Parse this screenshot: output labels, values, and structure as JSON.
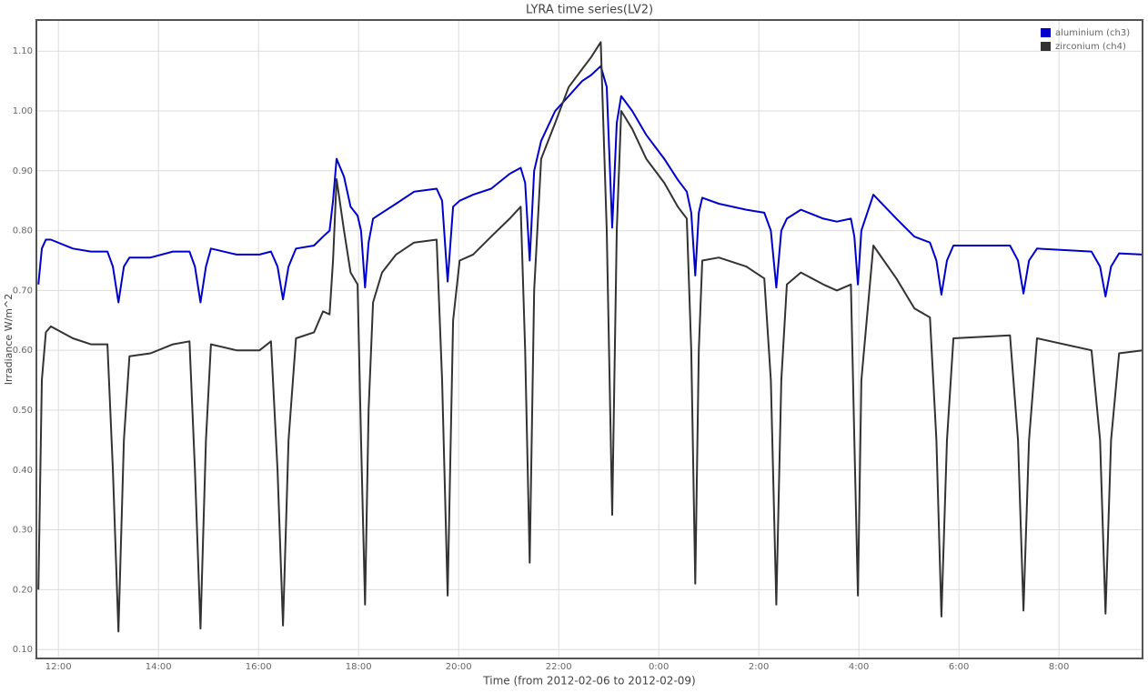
{
  "chart_data": {
    "type": "line",
    "title": "LYRA time series(LV2)",
    "x_label": "Time (from 2012-02-06 to 2012-02-09)",
    "y_label": "Irradiance W/m^2",
    "x": [
      11.6,
      11.67,
      11.75,
      11.85,
      12.29,
      12.65,
      12.98,
      13.09,
      13.2,
      13.31,
      13.42,
      13.84,
      14.29,
      14.62,
      14.73,
      14.84,
      14.95,
      15.05,
      15.56,
      16.02,
      16.25,
      16.38,
      16.49,
      16.6,
      16.75,
      17.11,
      17.29,
      17.42,
      17.49,
      17.56,
      17.71,
      17.84,
      17.98,
      18.05,
      18.13,
      18.2,
      18.29,
      18.47,
      18.75,
      19.11,
      19.56,
      19.67,
      19.78,
      19.89,
      20.02,
      20.29,
      20.65,
      21.02,
      21.24,
      21.33,
      21.42,
      21.51,
      21.65,
      21.93,
      22.2,
      22.47,
      22.65,
      22.84,
      22.96,
      23.07,
      23.16,
      23.25,
      23.47,
      23.75,
      24.11,
      24.38,
      24.56,
      24.65,
      24.73,
      24.8,
      24.87,
      25.2,
      25.75,
      26.11,
      26.24,
      26.35,
      26.45,
      26.56,
      26.84,
      27.29,
      27.56,
      27.84,
      27.91,
      27.98,
      28.05,
      28.29,
      28.75,
      29.11,
      29.42,
      29.55,
      29.65,
      29.76,
      29.89,
      31.02,
      31.18,
      31.29,
      31.4,
      31.56,
      32.65,
      32.82,
      32.93,
      33.04,
      33.2,
      33.67
    ],
    "series": [
      {
        "name": "aluminium (ch3)",
        "color": "#0000cc",
        "values": [
          0.71,
          0.77,
          0.785,
          0.785,
          0.77,
          0.765,
          0.765,
          0.74,
          0.68,
          0.74,
          0.755,
          0.755,
          0.765,
          0.765,
          0.74,
          0.68,
          0.74,
          0.77,
          0.76,
          0.76,
          0.765,
          0.74,
          0.685,
          0.74,
          0.77,
          0.775,
          0.79,
          0.8,
          0.85,
          0.92,
          0.89,
          0.84,
          0.825,
          0.8,
          0.705,
          0.78,
          0.82,
          0.83,
          0.845,
          0.865,
          0.87,
          0.85,
          0.715,
          0.84,
          0.85,
          0.86,
          0.87,
          0.895,
          0.905,
          0.88,
          0.75,
          0.9,
          0.95,
          1.0,
          1.025,
          1.05,
          1.06,
          1.075,
          1.04,
          0.805,
          0.98,
          1.025,
          1.0,
          0.96,
          0.92,
          0.885,
          0.865,
          0.83,
          0.725,
          0.83,
          0.855,
          0.845,
          0.835,
          0.83,
          0.8,
          0.705,
          0.8,
          0.82,
          0.835,
          0.82,
          0.815,
          0.82,
          0.79,
          0.71,
          0.8,
          0.86,
          0.82,
          0.79,
          0.78,
          0.75,
          0.693,
          0.75,
          0.775,
          0.775,
          0.75,
          0.695,
          0.75,
          0.77,
          0.765,
          0.74,
          0.69,
          0.74,
          0.762,
          0.76
        ]
      },
      {
        "name": "zirconium (ch4)",
        "color": "#333333",
        "values": [
          0.2,
          0.55,
          0.63,
          0.64,
          0.62,
          0.61,
          0.61,
          0.4,
          0.13,
          0.45,
          0.59,
          0.595,
          0.61,
          0.615,
          0.4,
          0.135,
          0.45,
          0.61,
          0.6,
          0.6,
          0.615,
          0.4,
          0.14,
          0.45,
          0.62,
          0.63,
          0.665,
          0.66,
          0.75,
          0.886,
          0.8,
          0.73,
          0.71,
          0.45,
          0.175,
          0.5,
          0.68,
          0.73,
          0.76,
          0.78,
          0.785,
          0.55,
          0.19,
          0.65,
          0.75,
          0.76,
          0.79,
          0.82,
          0.84,
          0.6,
          0.245,
          0.7,
          0.92,
          0.98,
          1.04,
          1.07,
          1.09,
          1.115,
          0.8,
          0.325,
          0.8,
          1.0,
          0.97,
          0.92,
          0.88,
          0.84,
          0.82,
          0.6,
          0.21,
          0.6,
          0.75,
          0.755,
          0.74,
          0.72,
          0.55,
          0.175,
          0.55,
          0.71,
          0.73,
          0.71,
          0.7,
          0.71,
          0.45,
          0.19,
          0.55,
          0.775,
          0.72,
          0.67,
          0.655,
          0.45,
          0.155,
          0.45,
          0.62,
          0.625,
          0.45,
          0.165,
          0.45,
          0.62,
          0.6,
          0.45,
          0.16,
          0.45,
          0.595,
          0.6
        ]
      }
    ],
    "xlim": [
      11.56,
      33.67
    ],
    "xticks": [
      {
        "value": 12,
        "label": "12:00"
      },
      {
        "value": 14,
        "label": "14:00"
      },
      {
        "value": 16,
        "label": "16:00"
      },
      {
        "value": 18,
        "label": "18:00"
      },
      {
        "value": 20,
        "label": "20:00"
      },
      {
        "value": 22,
        "label": "22:00"
      },
      {
        "value": 24,
        "label": "0:00"
      },
      {
        "value": 26,
        "label": "2:00"
      },
      {
        "value": 28,
        "label": "4:00"
      },
      {
        "value": 30,
        "label": "6:00"
      },
      {
        "value": 32,
        "label": "8:00"
      }
    ],
    "ylim": [
      0.085,
      1.152
    ],
    "yticks": [
      {
        "value": 0.1,
        "label": "0.10"
      },
      {
        "value": 0.2,
        "label": "0.20"
      },
      {
        "value": 0.3,
        "label": "0.30"
      },
      {
        "value": 0.4,
        "label": "0.40"
      },
      {
        "value": 0.5,
        "label": "0.50"
      },
      {
        "value": 0.6,
        "label": "0.60"
      },
      {
        "value": 0.7,
        "label": "0.70"
      },
      {
        "value": 0.8,
        "label": "0.80"
      },
      {
        "value": 0.9,
        "label": "0.90"
      },
      {
        "value": 1.0,
        "label": "1.00"
      },
      {
        "value": 1.1,
        "label": "1.10"
      }
    ],
    "grid": true,
    "legend": "top-right"
  }
}
